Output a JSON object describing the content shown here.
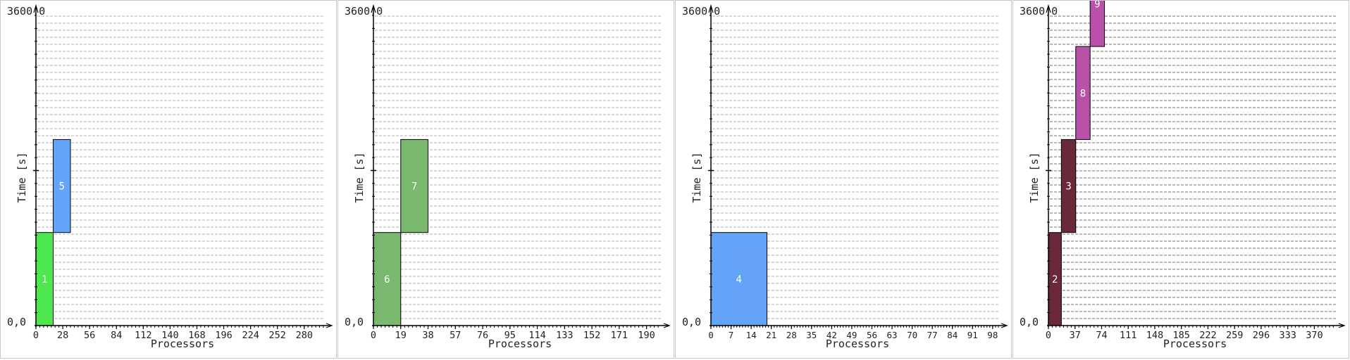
{
  "chart_data": [
    {
      "type": "gantt",
      "xlabel": "Processors",
      "ylabel": "Time [s]",
      "ylim": [
        0,
        3600
      ],
      "y_top_label": "3600,0",
      "y_bottom_label": "0,0",
      "xlim": [
        0,
        300
      ],
      "xticks": [
        0,
        28,
        56,
        84,
        112,
        140,
        168,
        196,
        224,
        252,
        280
      ],
      "grid_color": "#d8d8d8",
      "jobs": [
        {
          "label": "1",
          "x0": 0,
          "x1": 18,
          "start": 0,
          "end": 1080,
          "color": "#4ee84e"
        },
        {
          "label": "5",
          "x0": 18,
          "x1": 36,
          "start": 1080,
          "end": 2160,
          "color": "#64a4f8"
        }
      ]
    },
    {
      "type": "gantt",
      "xlabel": "Processors",
      "ylabel": "Time [s]",
      "ylim": [
        0,
        3600
      ],
      "y_top_label": "3600,0",
      "y_bottom_label": "0,0",
      "xlim": [
        0,
        200
      ],
      "xticks": [
        0,
        19,
        38,
        57,
        76,
        95,
        114,
        133,
        152,
        171,
        190
      ],
      "grid_color": "#d8d8d8",
      "jobs": [
        {
          "label": "6",
          "x0": 0,
          "x1": 19,
          "start": 0,
          "end": 1080,
          "color": "#7ab86e"
        },
        {
          "label": "7",
          "x0": 19,
          "x1": 38,
          "start": 1080,
          "end": 2160,
          "color": "#7ab86e"
        }
      ]
    },
    {
      "type": "gantt",
      "xlabel": "Processors",
      "ylabel": "Time [s]",
      "ylim": [
        0,
        3600
      ],
      "y_top_label": "3600,0",
      "y_bottom_label": "0,0",
      "xlim": [
        0,
        100
      ],
      "xticks": [
        0,
        7,
        14,
        21,
        28,
        35,
        42,
        49,
        56,
        63,
        70,
        77,
        84,
        91,
        98
      ],
      "grid_color": "#d8d8d8",
      "jobs": [
        {
          "label": "4",
          "x0": 0,
          "x1": 19.5,
          "start": 0,
          "end": 1080,
          "color": "#64a4f8"
        }
      ]
    },
    {
      "type": "gantt",
      "xlabel": "Processors",
      "ylabel": "Time [s]",
      "ylim": [
        0,
        3600
      ],
      "y_top_label": "3600,0",
      "y_bottom_label": "0,0",
      "xlim": [
        0,
        400
      ],
      "xticks": [
        0,
        37,
        74,
        111,
        148,
        185,
        222,
        259,
        296,
        333,
        370
      ],
      "grid_color": "#b8b8b8",
      "jobs": [
        {
          "label": "2",
          "x0": 0,
          "x1": 18,
          "start": 0,
          "end": 1080,
          "color": "#6a2838"
        },
        {
          "label": "3",
          "x0": 18,
          "x1": 38,
          "start": 1080,
          "end": 2160,
          "color": "#6a2838"
        },
        {
          "label": "8",
          "x0": 38,
          "x1": 58,
          "start": 2160,
          "end": 3240,
          "color": "#b852a8"
        },
        {
          "label": "9",
          "x0": 58,
          "x1": 78,
          "start": 3240,
          "end": 4230,
          "color": "#b852a8"
        }
      ]
    }
  ]
}
